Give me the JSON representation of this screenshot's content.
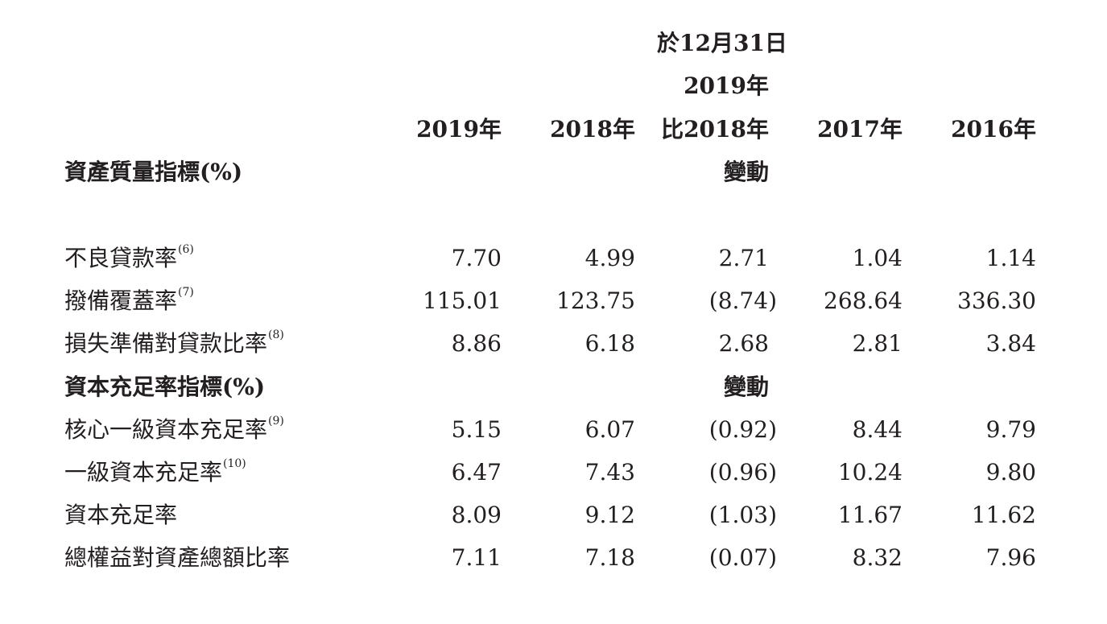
{
  "header": {
    "as_at": "於12月31日",
    "change_line1": "2019年",
    "change_line2": "比2018年",
    "change_line3": "變動",
    "col_2019": "2019年",
    "col_2018": "2018年",
    "col_2017": "2017年",
    "col_2016": "2016年"
  },
  "section1": {
    "title": "資產質量指標(%)",
    "rows": [
      {
        "label": "不良貸款率",
        "note": "(6)",
        "v2019": "7.70",
        "v2018": "4.99",
        "change": "2.71",
        "v2017": "1.04",
        "v2016": "1.14"
      },
      {
        "label": "撥備覆蓋率",
        "note": "(7)",
        "v2019": "115.01",
        "v2018": "123.75",
        "change": "(8.74)",
        "v2017": "268.64",
        "v2016": "336.30"
      },
      {
        "label": "損失準備對貸款比率",
        "note": "(8)",
        "v2019": "8.86",
        "v2018": "6.18",
        "change": "2.68",
        "v2017": "2.81",
        "v2016": "3.84"
      }
    ]
  },
  "section2": {
    "title": "資本充足率指標(%)",
    "change_label": "變動",
    "rows": [
      {
        "label": "核心一級資本充足率",
        "note": "(9)",
        "v2019": "5.15",
        "v2018": "6.07",
        "change": "(0.92)",
        "v2017": "8.44",
        "v2016": "9.79"
      },
      {
        "label": "一級資本充足率",
        "note": "(10)",
        "v2019": "6.47",
        "v2018": "7.43",
        "change": "(0.96)",
        "v2017": "10.24",
        "v2016": "9.80"
      },
      {
        "label": "資本充足率",
        "note": "",
        "v2019": "8.09",
        "v2018": "9.12",
        "change": "(1.03)",
        "v2017": "11.67",
        "v2016": "11.62"
      },
      {
        "label": "總權益對資產總額比率",
        "note": "",
        "v2019": "7.11",
        "v2018": "7.18",
        "change": "(0.07)",
        "v2017": "8.32",
        "v2016": "7.96"
      }
    ]
  }
}
